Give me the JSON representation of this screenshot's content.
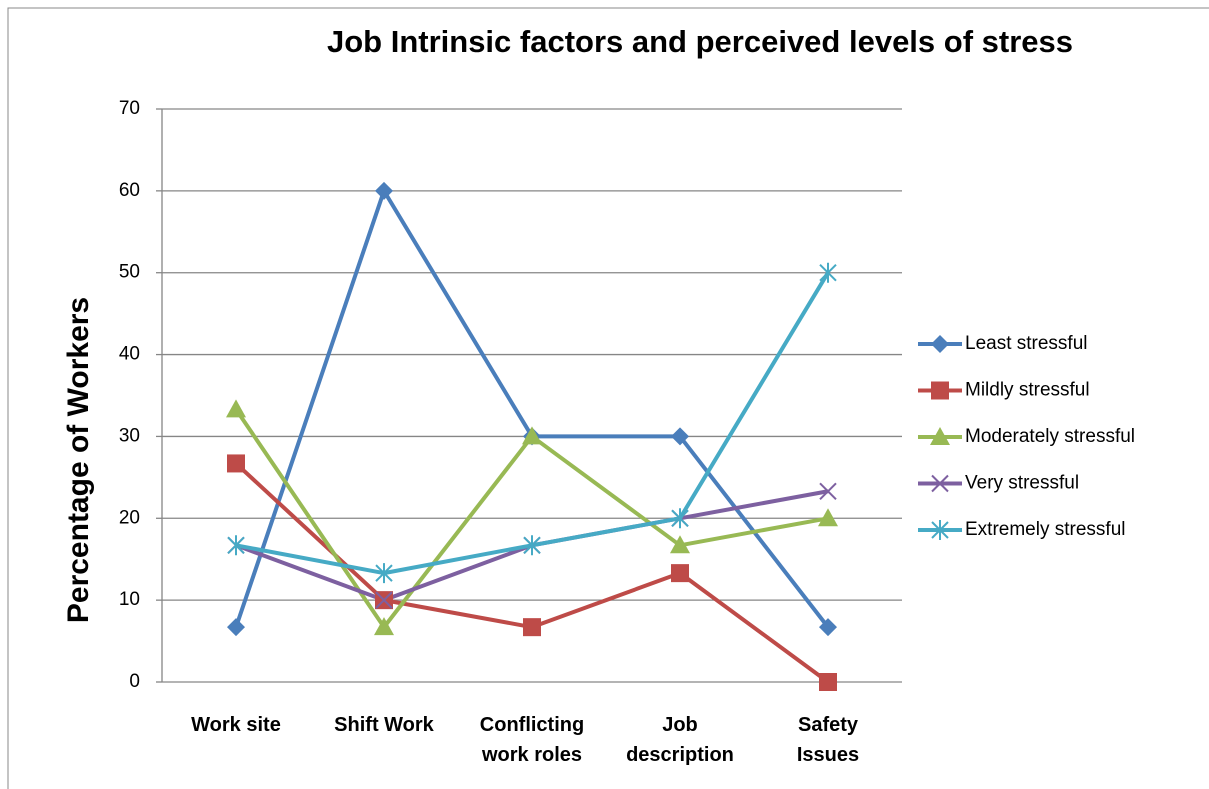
{
  "chart_data": {
    "type": "line",
    "title": "Job Intrinsic factors and perceived levels of stress",
    "y_label": "Percentage of Workers",
    "categories": [
      "Work site",
      "Shift Work",
      "Conflicting\nwork roles",
      "Job\ndescription",
      "Safety\nIssues"
    ],
    "series": [
      {
        "name": "Least stressful",
        "color": "#4a7ebb",
        "marker": "diamond",
        "values": [
          6.7,
          60,
          30,
          30,
          6.7
        ]
      },
      {
        "name": "Mildly stressful",
        "color": "#be4b48",
        "marker": "square",
        "values": [
          26.7,
          10,
          6.7,
          13.3,
          0
        ]
      },
      {
        "name": "Moderately stressful",
        "color": "#98b954",
        "marker": "triangle",
        "values": [
          33.3,
          6.7,
          30,
          16.7,
          20
        ]
      },
      {
        "name": "Very stressful",
        "color": "#7d60a0",
        "marker": "x",
        "values": [
          16.7,
          10,
          16.7,
          20,
          23.3
        ]
      },
      {
        "name": "Extremely stressful",
        "color": "#46aac5",
        "marker": "asterisk",
        "values": [
          16.7,
          13.3,
          16.7,
          20,
          50
        ]
      }
    ],
    "ylim": [
      0,
      70
    ],
    "yticks": [
      0,
      10,
      20,
      30,
      40,
      50,
      60,
      70
    ],
    "grid": true,
    "legend": "right"
  }
}
